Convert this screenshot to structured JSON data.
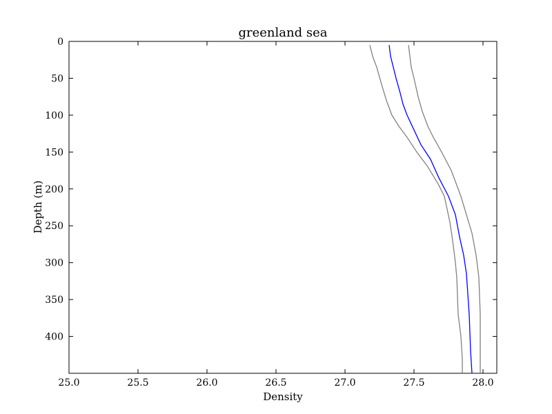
{
  "chart_data": {
    "type": "line",
    "title": "greenland sea",
    "xlabel": "Density",
    "ylabel": "Depth (m)",
    "xlim": [
      25.0,
      28.1
    ],
    "ylim": [
      0,
      450
    ],
    "y_inverted": true,
    "grid": false,
    "x_ticks": [
      25.0,
      25.5,
      26.0,
      26.5,
      27.0,
      27.5,
      28.0
    ],
    "x_tick_labels": [
      "25.0",
      "25.5",
      "26.0",
      "26.5",
      "27.0",
      "27.5",
      "28.0"
    ],
    "y_ticks": [
      0,
      50,
      100,
      150,
      200,
      250,
      300,
      350,
      400
    ],
    "y_tick_labels": [
      "0",
      "50",
      "100",
      "150",
      "200",
      "250",
      "300",
      "350",
      "400"
    ],
    "series": [
      {
        "color": "#808080",
        "x": [
          27.18,
          27.2,
          27.23,
          27.26,
          27.3,
          27.34,
          27.39,
          27.45,
          27.52,
          27.6,
          27.68,
          27.72,
          27.76,
          27.78,
          27.8,
          27.81,
          27.82,
          27.84,
          27.85,
          27.85
        ],
        "y": [
          5,
          20,
          35,
          55,
          80,
          100,
          115,
          130,
          150,
          170,
          195,
          210,
          245,
          270,
          300,
          320,
          370,
          400,
          430,
          450
        ]
      },
      {
        "color": "#0000ff",
        "x": [
          27.32,
          27.33,
          27.35,
          27.37,
          27.4,
          27.42,
          27.45,
          27.5,
          27.55,
          27.62,
          27.68,
          27.75,
          27.8,
          27.83,
          27.86,
          27.88,
          27.9,
          27.91,
          27.92
        ],
        "y": [
          5,
          20,
          35,
          50,
          70,
          85,
          100,
          120,
          140,
          160,
          185,
          210,
          235,
          265,
          290,
          315,
          370,
          420,
          450
        ]
      },
      {
        "color": "#808080",
        "x": [
          27.46,
          27.47,
          27.48,
          27.5,
          27.53,
          27.56,
          27.6,
          27.64,
          27.7,
          27.77,
          27.84,
          27.88,
          27.92,
          27.95,
          27.97,
          27.98,
          27.98
        ],
        "y": [
          5,
          20,
          35,
          50,
          75,
          95,
          115,
          130,
          150,
          175,
          210,
          235,
          260,
          290,
          320,
          370,
          450
        ]
      }
    ]
  }
}
